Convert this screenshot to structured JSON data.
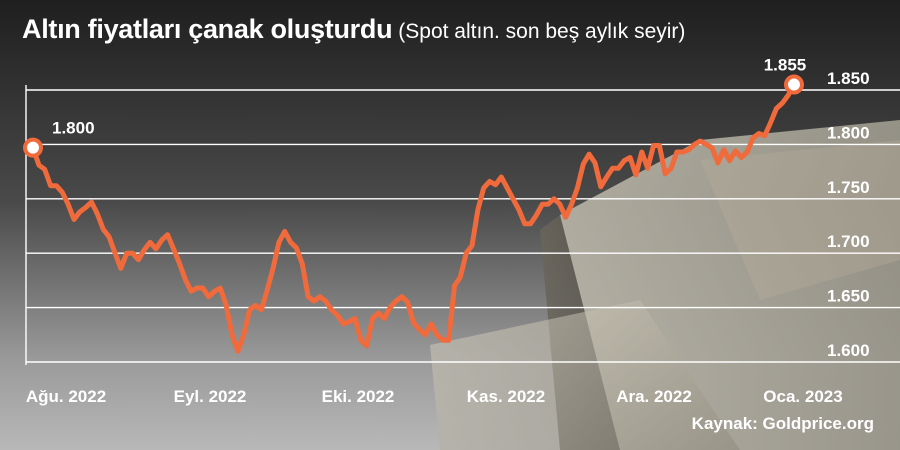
{
  "title": "Altın fiyatları çanak oluşturdu",
  "subtitle": "(Spot altın. son beş aylık seyir)",
  "source": "Kaynak: Goldprice.org",
  "colors": {
    "line": "#f06a3c",
    "marker_fill": "#ffffff",
    "grid": "#ffffff",
    "text": "#ffffff"
  },
  "chart_data": {
    "type": "line",
    "title": "Altın fiyatları çanak oluşturdu",
    "subtitle": "(Spot altın. son beş aylık seyir)",
    "xlabel": "",
    "ylabel": "",
    "x_ticks": [
      "Ağu. 2022",
      "Eyl. 2022",
      "Eki. 2022",
      "Kas. 2022",
      "Ara. 2022",
      "Oca. 2023"
    ],
    "y_ticks": [
      1600,
      1650,
      1700,
      1750,
      1800,
      1850
    ],
    "y_tick_labels": [
      "1.600",
      "1.650",
      "1.700",
      "1.750",
      "1.800",
      "1.850"
    ],
    "ylim": [
      1600,
      1855
    ],
    "grid": true,
    "annotations": [
      {
        "text": "1.800",
        "point": "first"
      },
      {
        "text": "1.855",
        "point": "last"
      }
    ],
    "series": [
      {
        "values": [
          1797,
          1781,
          1777,
          1762,
          1762,
          1756,
          1745,
          1731,
          1738,
          1742,
          1747,
          1736,
          1722,
          1715,
          1700,
          1686,
          1700,
          1700,
          1694,
          1703,
          1710,
          1704,
          1712,
          1717,
          1704,
          1691,
          1676,
          1665,
          1668,
          1668,
          1660,
          1665,
          1668,
          1652,
          1625,
          1610,
          1625,
          1648,
          1652,
          1648,
          1666,
          1686,
          1710,
          1720,
          1710,
          1705,
          1690,
          1660,
          1656,
          1660,
          1656,
          1648,
          1643,
          1635,
          1637,
          1640,
          1620,
          1615,
          1640,
          1645,
          1640,
          1650,
          1656,
          1660,
          1655,
          1636,
          1630,
          1625,
          1635,
          1625,
          1620,
          1620,
          1670,
          1678,
          1700,
          1707,
          1740,
          1760,
          1766,
          1763,
          1770,
          1760,
          1750,
          1740,
          1727,
          1727,
          1735,
          1745,
          1745,
          1750,
          1745,
          1733,
          1745,
          1760,
          1782,
          1791,
          1783,
          1761,
          1770,
          1778,
          1778,
          1785,
          1788,
          1772,
          1793,
          1778,
          1799,
          1799,
          1773,
          1778,
          1793,
          1793,
          1795,
          1800,
          1803,
          1800,
          1797,
          1783,
          1795,
          1785,
          1794,
          1788,
          1793,
          1806,
          1810,
          1808,
          1820,
          1833,
          1838,
          1845,
          1855
        ]
      }
    ]
  }
}
